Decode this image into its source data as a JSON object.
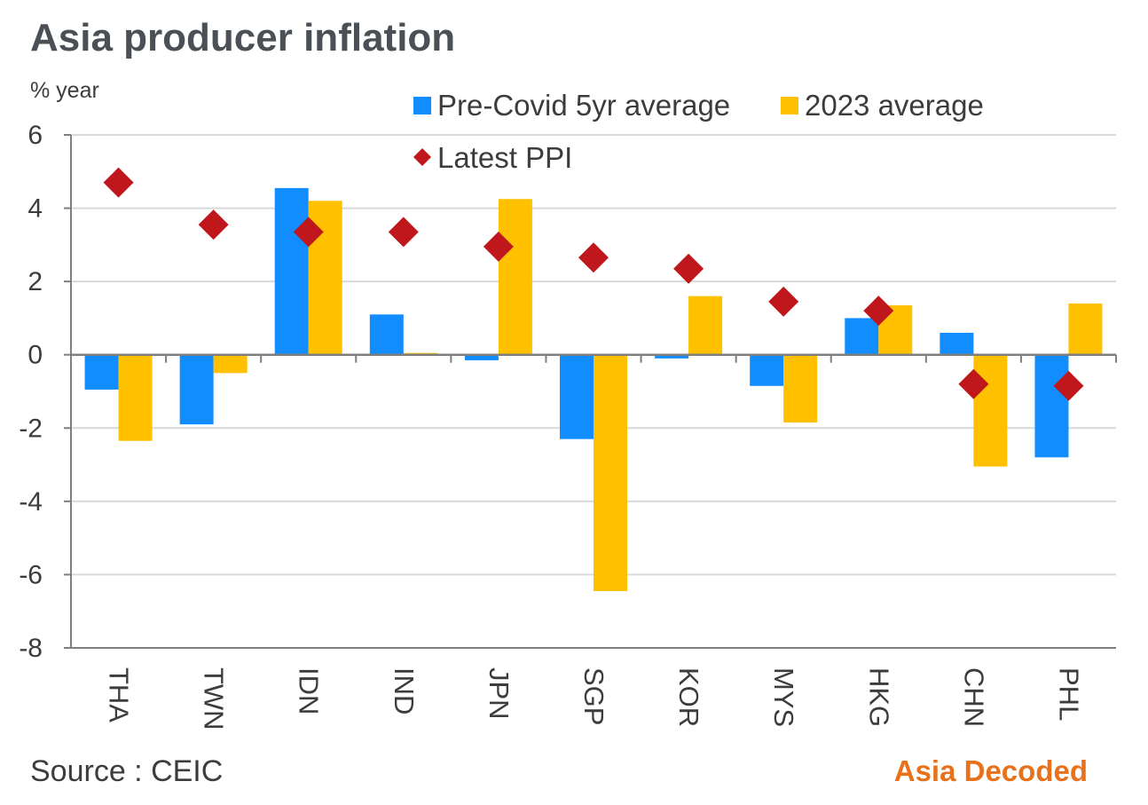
{
  "title": "Asia producer inflation",
  "units_label": "% year",
  "source": "Source : CEIC",
  "brand": "Asia Decoded",
  "colors": {
    "pre_covid": "#118dff",
    "avg_2023": "#ffc000",
    "latest": "#c0171c",
    "grid": "#d9d9d9",
    "axis": "#7f7f7f",
    "text": "#3c3c3c",
    "brand": "#e8711c"
  },
  "chart_data": {
    "type": "bar",
    "title": "Asia producer inflation",
    "ylabel": "% year",
    "ylim": [
      -8,
      6
    ],
    "yticks": [
      "6",
      "4",
      "2",
      "0",
      "-2",
      "-4",
      "-6",
      "-8"
    ],
    "ytick_values": [
      6,
      4,
      2,
      0,
      -2,
      -4,
      -6,
      -8
    ],
    "grid": true,
    "legend_position": "top-right",
    "categories": [
      "THA",
      "TWN",
      "IDN",
      "IND",
      "JPN",
      "SGP",
      "KOR",
      "MYS",
      "HKG",
      "CHN",
      "PHL"
    ],
    "series": [
      {
        "name": "Pre-Covid 5yr average",
        "type": "bar",
        "values": [
          -0.95,
          -1.9,
          4.55,
          1.1,
          -0.15,
          -2.3,
          -0.1,
          -0.85,
          1.0,
          0.6,
          -2.8
        ]
      },
      {
        "name": "2023 average",
        "type": "bar",
        "values": [
          -2.35,
          -0.5,
          4.2,
          0.05,
          4.25,
          -6.45,
          1.6,
          -1.85,
          1.35,
          -3.05,
          1.4
        ]
      },
      {
        "name": "Latest PPI",
        "type": "scatter",
        "values": [
          4.7,
          3.55,
          3.35,
          3.35,
          2.95,
          2.65,
          2.35,
          1.45,
          1.2,
          -0.8,
          -0.85
        ]
      }
    ]
  }
}
